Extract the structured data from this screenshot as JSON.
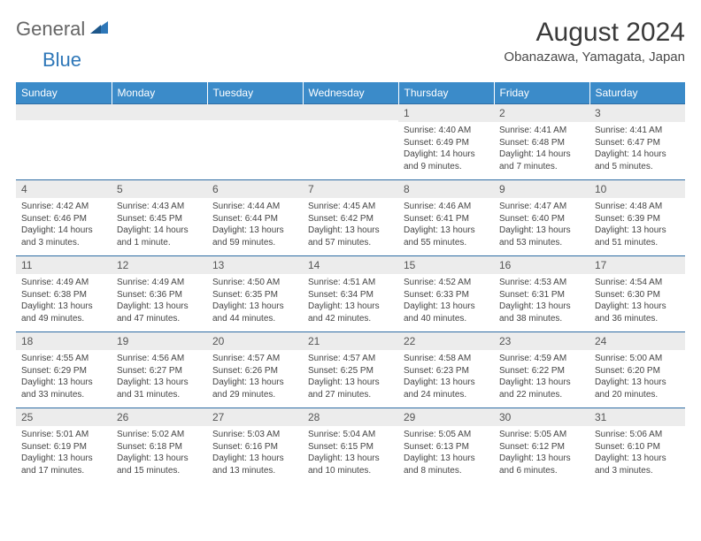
{
  "brand": {
    "general": "General",
    "blue": "Blue"
  },
  "title": "August 2024",
  "location": "Obanazawa, Yamagata, Japan",
  "weekdays": [
    "Sunday",
    "Monday",
    "Tuesday",
    "Wednesday",
    "Thursday",
    "Friday",
    "Saturday"
  ],
  "colors": {
    "header_bg": "#3b8bc9",
    "header_text": "#ffffff",
    "daynum_bg": "#ececec",
    "row_border": "#2e6da4",
    "brand_blue": "#2e77b8"
  },
  "weeks": [
    [
      {
        "n": "",
        "lines": []
      },
      {
        "n": "",
        "lines": []
      },
      {
        "n": "",
        "lines": []
      },
      {
        "n": "",
        "lines": []
      },
      {
        "n": "1",
        "lines": [
          "Sunrise: 4:40 AM",
          "Sunset: 6:49 PM",
          "Daylight: 14 hours and 9 minutes."
        ]
      },
      {
        "n": "2",
        "lines": [
          "Sunrise: 4:41 AM",
          "Sunset: 6:48 PM",
          "Daylight: 14 hours and 7 minutes."
        ]
      },
      {
        "n": "3",
        "lines": [
          "Sunrise: 4:41 AM",
          "Sunset: 6:47 PM",
          "Daylight: 14 hours and 5 minutes."
        ]
      }
    ],
    [
      {
        "n": "4",
        "lines": [
          "Sunrise: 4:42 AM",
          "Sunset: 6:46 PM",
          "Daylight: 14 hours and 3 minutes."
        ]
      },
      {
        "n": "5",
        "lines": [
          "Sunrise: 4:43 AM",
          "Sunset: 6:45 PM",
          "Daylight: 14 hours and 1 minute."
        ]
      },
      {
        "n": "6",
        "lines": [
          "Sunrise: 4:44 AM",
          "Sunset: 6:44 PM",
          "Daylight: 13 hours and 59 minutes."
        ]
      },
      {
        "n": "7",
        "lines": [
          "Sunrise: 4:45 AM",
          "Sunset: 6:42 PM",
          "Daylight: 13 hours and 57 minutes."
        ]
      },
      {
        "n": "8",
        "lines": [
          "Sunrise: 4:46 AM",
          "Sunset: 6:41 PM",
          "Daylight: 13 hours and 55 minutes."
        ]
      },
      {
        "n": "9",
        "lines": [
          "Sunrise: 4:47 AM",
          "Sunset: 6:40 PM",
          "Daylight: 13 hours and 53 minutes."
        ]
      },
      {
        "n": "10",
        "lines": [
          "Sunrise: 4:48 AM",
          "Sunset: 6:39 PM",
          "Daylight: 13 hours and 51 minutes."
        ]
      }
    ],
    [
      {
        "n": "11",
        "lines": [
          "Sunrise: 4:49 AM",
          "Sunset: 6:38 PM",
          "Daylight: 13 hours and 49 minutes."
        ]
      },
      {
        "n": "12",
        "lines": [
          "Sunrise: 4:49 AM",
          "Sunset: 6:36 PM",
          "Daylight: 13 hours and 47 minutes."
        ]
      },
      {
        "n": "13",
        "lines": [
          "Sunrise: 4:50 AM",
          "Sunset: 6:35 PM",
          "Daylight: 13 hours and 44 minutes."
        ]
      },
      {
        "n": "14",
        "lines": [
          "Sunrise: 4:51 AM",
          "Sunset: 6:34 PM",
          "Daylight: 13 hours and 42 minutes."
        ]
      },
      {
        "n": "15",
        "lines": [
          "Sunrise: 4:52 AM",
          "Sunset: 6:33 PM",
          "Daylight: 13 hours and 40 minutes."
        ]
      },
      {
        "n": "16",
        "lines": [
          "Sunrise: 4:53 AM",
          "Sunset: 6:31 PM",
          "Daylight: 13 hours and 38 minutes."
        ]
      },
      {
        "n": "17",
        "lines": [
          "Sunrise: 4:54 AM",
          "Sunset: 6:30 PM",
          "Daylight: 13 hours and 36 minutes."
        ]
      }
    ],
    [
      {
        "n": "18",
        "lines": [
          "Sunrise: 4:55 AM",
          "Sunset: 6:29 PM",
          "Daylight: 13 hours and 33 minutes."
        ]
      },
      {
        "n": "19",
        "lines": [
          "Sunrise: 4:56 AM",
          "Sunset: 6:27 PM",
          "Daylight: 13 hours and 31 minutes."
        ]
      },
      {
        "n": "20",
        "lines": [
          "Sunrise: 4:57 AM",
          "Sunset: 6:26 PM",
          "Daylight: 13 hours and 29 minutes."
        ]
      },
      {
        "n": "21",
        "lines": [
          "Sunrise: 4:57 AM",
          "Sunset: 6:25 PM",
          "Daylight: 13 hours and 27 minutes."
        ]
      },
      {
        "n": "22",
        "lines": [
          "Sunrise: 4:58 AM",
          "Sunset: 6:23 PM",
          "Daylight: 13 hours and 24 minutes."
        ]
      },
      {
        "n": "23",
        "lines": [
          "Sunrise: 4:59 AM",
          "Sunset: 6:22 PM",
          "Daylight: 13 hours and 22 minutes."
        ]
      },
      {
        "n": "24",
        "lines": [
          "Sunrise: 5:00 AM",
          "Sunset: 6:20 PM",
          "Daylight: 13 hours and 20 minutes."
        ]
      }
    ],
    [
      {
        "n": "25",
        "lines": [
          "Sunrise: 5:01 AM",
          "Sunset: 6:19 PM",
          "Daylight: 13 hours and 17 minutes."
        ]
      },
      {
        "n": "26",
        "lines": [
          "Sunrise: 5:02 AM",
          "Sunset: 6:18 PM",
          "Daylight: 13 hours and 15 minutes."
        ]
      },
      {
        "n": "27",
        "lines": [
          "Sunrise: 5:03 AM",
          "Sunset: 6:16 PM",
          "Daylight: 13 hours and 13 minutes."
        ]
      },
      {
        "n": "28",
        "lines": [
          "Sunrise: 5:04 AM",
          "Sunset: 6:15 PM",
          "Daylight: 13 hours and 10 minutes."
        ]
      },
      {
        "n": "29",
        "lines": [
          "Sunrise: 5:05 AM",
          "Sunset: 6:13 PM",
          "Daylight: 13 hours and 8 minutes."
        ]
      },
      {
        "n": "30",
        "lines": [
          "Sunrise: 5:05 AM",
          "Sunset: 6:12 PM",
          "Daylight: 13 hours and 6 minutes."
        ]
      },
      {
        "n": "31",
        "lines": [
          "Sunrise: 5:06 AM",
          "Sunset: 6:10 PM",
          "Daylight: 13 hours and 3 minutes."
        ]
      }
    ]
  ]
}
